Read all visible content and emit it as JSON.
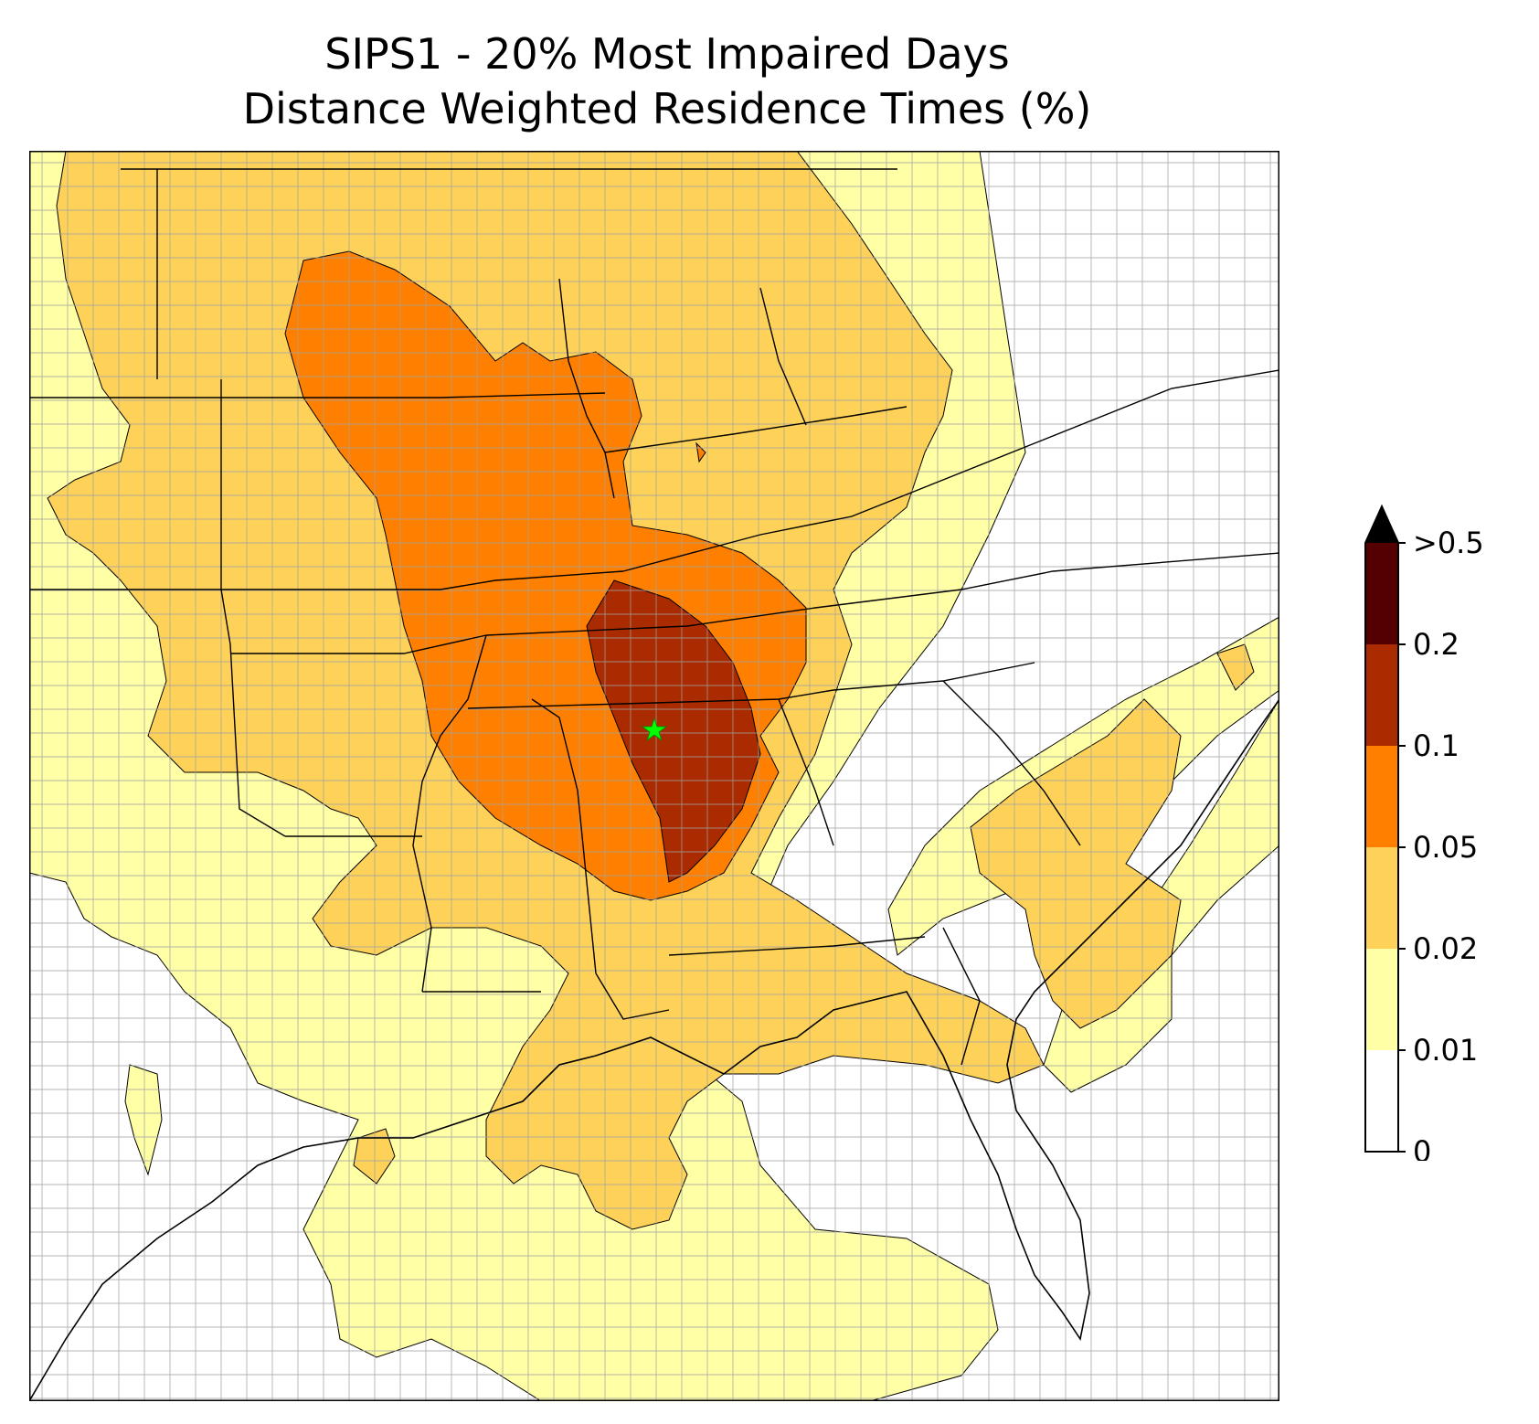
{
  "title": {
    "line1": "SIPS1 - 20% Most Impaired Days",
    "line2": "Distance Weighted Residence Times (%)"
  },
  "map": {
    "receptor_site": "SIPS1",
    "receptor_marker": "star",
    "receptor_color": "#00ff00",
    "state_line_color": "#000000",
    "county_line_color": "#a0a0a0"
  },
  "legend": {
    "levels": [
      {
        "label": "0",
        "color": "#ffffff"
      },
      {
        "label": "0.01",
        "color": "#ffffa6"
      },
      {
        "label": "0.02",
        "color": "#fed259"
      },
      {
        "label": "0.05",
        "color": "#ff8000"
      },
      {
        "label": "0.1",
        "color": "#aa2b00"
      },
      {
        "label": "0.2",
        "color": "#550000"
      },
      {
        "label": ">0.5",
        "color": "#000000"
      }
    ],
    "extend": "max"
  }
}
